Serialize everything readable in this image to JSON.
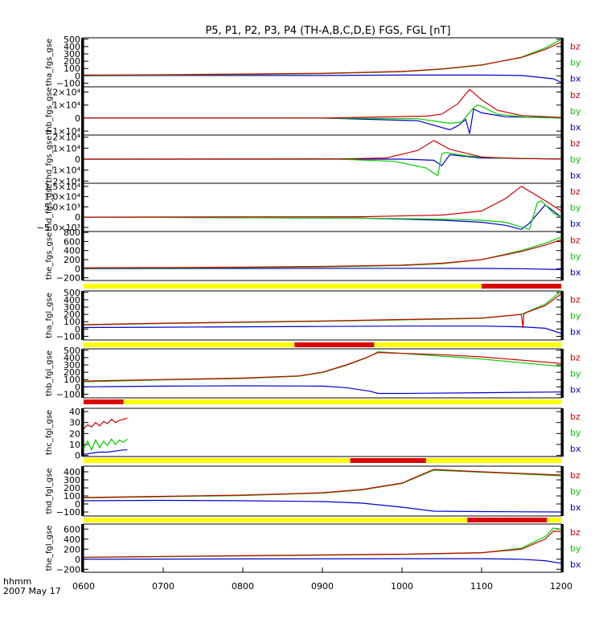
{
  "title": "P5, P1, P2, P3, P4 (TH-A,B,C,D,E) FGS, FGL [nT]",
  "time_axis": {
    "unit_label": "hhmm",
    "date_label": "2007 May 17",
    "ticks": [
      "0600",
      "0700",
      "0800",
      "0900",
      "1000",
      "1100",
      "1200"
    ],
    "range_hours": [
      6,
      12
    ]
  },
  "colors": {
    "bz": "#cc0000",
    "by": "#00cc00",
    "bx": "#0000cc",
    "bar_yellow": "#ffff00",
    "bar_red": "#dd0000",
    "axis": "#000000"
  },
  "chart_data": [
    {
      "type": "line",
      "ylabel": "tha_fgs_gse",
      "yticks": [
        {
          "v": -100,
          "t": "−100"
        },
        {
          "v": 0,
          "t": "0"
        },
        {
          "v": 100,
          "t": "100"
        },
        {
          "v": 200,
          "t": "200"
        },
        {
          "v": 300,
          "t": "300"
        },
        {
          "v": 400,
          "t": "400"
        },
        {
          "v": 500,
          "t": "500"
        }
      ],
      "ylim": [
        -150,
        520
      ],
      "series": [
        {
          "name": "bz",
          "x": [
            6.0,
            7.0,
            8.0,
            9.0,
            10.0,
            10.5,
            11.0,
            11.5,
            11.8,
            12.0
          ],
          "values": [
            10,
            15,
            25,
            35,
            60,
            95,
            150,
            250,
            360,
            460
          ]
        },
        {
          "name": "by",
          "x": [
            6.0,
            7.0,
            8.0,
            9.0,
            10.0,
            10.5,
            11.0,
            11.5,
            11.8,
            12.0
          ],
          "values": [
            5,
            10,
            18,
            30,
            55,
            90,
            145,
            255,
            380,
            500
          ]
        },
        {
          "name": "bx",
          "x": [
            6.0,
            7.0,
            8.0,
            9.0,
            10.0,
            11.0,
            11.5,
            11.9,
            12.0
          ],
          "values": [
            0,
            5,
            5,
            5,
            10,
            10,
            5,
            -40,
            -90
          ]
        }
      ]
    },
    {
      "type": "line",
      "ylabel": "thb_fgs_gse",
      "yticks": [
        {
          "v": -10000,
          "t": "−1×10⁴"
        },
        {
          "v": 0,
          "t": "0"
        },
        {
          "v": 10000,
          "t": "1×10⁴"
        },
        {
          "v": 20000,
          "t": "2×10⁴"
        }
      ],
      "ylim": [
        -13000,
        24000
      ],
      "series": [
        {
          "name": "bz",
          "x": [
            6.0,
            9.0,
            10.3,
            10.5,
            10.7,
            10.85,
            11.0,
            11.2,
            11.5,
            12.0
          ],
          "values": [
            0,
            50,
            1500,
            3000,
            11000,
            22000,
            14000,
            6000,
            2000,
            500
          ]
        },
        {
          "name": "by",
          "x": [
            6.0,
            9.0,
            10.2,
            10.6,
            10.75,
            10.9,
            10.95,
            11.0,
            11.2,
            11.6,
            12.0
          ],
          "values": [
            0,
            0,
            -500,
            -4000,
            -3000,
            8000,
            10000,
            9000,
            3000,
            500,
            100
          ]
        },
        {
          "name": "bx",
          "x": [
            6.0,
            9.0,
            10.2,
            10.6,
            10.7,
            10.8,
            10.85,
            10.9,
            11.0,
            11.3,
            12.0
          ],
          "values": [
            0,
            0,
            -2000,
            -9000,
            -6000,
            -1000,
            -12000,
            7000,
            4000,
            1000,
            200
          ]
        }
      ]
    },
    {
      "type": "line",
      "ylabel": "thc_fgs_gse",
      "yticks": [
        {
          "v": -20000,
          "t": "−2×10⁴"
        },
        {
          "v": -10000,
          "t": "−1×10⁴"
        },
        {
          "v": 0,
          "t": "0"
        },
        {
          "v": 10000,
          "t": "1×10⁴"
        },
        {
          "v": 20000,
          "t": "2×10⁴"
        }
      ],
      "ylim": [
        -22000,
        22000
      ],
      "series": [
        {
          "name": "bz",
          "x": [
            6.0,
            9.2,
            9.8,
            10.2,
            10.4,
            10.6,
            11.0,
            11.5,
            12.0
          ],
          "values": [
            0,
            200,
            1000,
            8000,
            17000,
            9000,
            2000,
            500,
            200
          ]
        },
        {
          "name": "by",
          "x": [
            6.0,
            9.2,
            9.9,
            10.3,
            10.45,
            10.5,
            10.55,
            10.8,
            11.2,
            12.0
          ],
          "values": [
            0,
            0,
            -2000,
            -8000,
            -15000,
            5000,
            6000,
            3000,
            1000,
            200
          ]
        },
        {
          "name": "bx",
          "x": [
            6.0,
            9.2,
            10.0,
            10.4,
            10.5,
            10.6,
            11.0,
            12.0
          ],
          "values": [
            0,
            0,
            0,
            -1000,
            -6000,
            4000,
            1000,
            100
          ]
        }
      ]
    },
    {
      "type": "line",
      "ylabel": "thd_fgs_gse",
      "yticks": [
        {
          "v": -5000,
          "t": "−5.0×10³"
        },
        {
          "v": 0,
          "t": "0"
        },
        {
          "v": 5000,
          "t": "5.0×10³"
        },
        {
          "v": 10000,
          "t": "1.0×10⁴"
        },
        {
          "v": 15000,
          "t": "1.5×10⁴"
        }
      ],
      "ylim": [
        -7000,
        16500
      ],
      "series": [
        {
          "name": "bz",
          "x": [
            6.0,
            9.5,
            10.5,
            11.0,
            11.3,
            11.5,
            11.8,
            12.0
          ],
          "values": [
            0,
            200,
            1000,
            3000,
            9000,
            15000,
            8000,
            3000
          ]
        },
        {
          "name": "by",
          "x": [
            6.0,
            9.5,
            10.5,
            11.0,
            11.3,
            11.6,
            11.7,
            11.75,
            11.9,
            12.0
          ],
          "values": [
            0,
            -500,
            -1000,
            -1500,
            -2500,
            -6000,
            7000,
            8000,
            2000,
            0
          ]
        },
        {
          "name": "bx",
          "x": [
            6.0,
            9.5,
            10.5,
            11.0,
            11.3,
            11.5,
            11.6,
            11.8,
            12.0
          ],
          "values": [
            0,
            -500,
            -1500,
            -2500,
            -4000,
            -6000,
            -3000,
            6000,
            0
          ]
        }
      ]
    },
    {
      "type": "line",
      "ylabel": "the_fgs_gse",
      "yticks": [
        {
          "v": -200,
          "t": "−200"
        },
        {
          "v": 0,
          "t": "0"
        },
        {
          "v": 200,
          "t": "200"
        },
        {
          "v": 400,
          "t": "400"
        },
        {
          "v": 600,
          "t": "600"
        },
        {
          "v": 800,
          "t": "800"
        }
      ],
      "ylim": [
        -260,
        820
      ],
      "bar": {
        "red_ranges_hours": [
          [
            11.0,
            12.0
          ]
        ]
      },
      "series": [
        {
          "name": "bz",
          "x": [
            6.0,
            7.0,
            8.0,
            9.0,
            10.0,
            10.5,
            11.0,
            11.5,
            11.8,
            12.0
          ],
          "values": [
            20,
            25,
            35,
            50,
            80,
            120,
            200,
            380,
            520,
            640
          ]
        },
        {
          "name": "by",
          "x": [
            6.0,
            7.0,
            8.0,
            9.0,
            10.0,
            10.5,
            11.0,
            11.5,
            11.8,
            12.0
          ],
          "values": [
            10,
            15,
            25,
            40,
            70,
            110,
            200,
            400,
            560,
            700
          ]
        },
        {
          "name": "bx",
          "x": [
            6.0,
            8.0,
            10.0,
            11.0,
            11.5,
            12.0
          ],
          "values": [
            0,
            5,
            10,
            5,
            0,
            -20
          ]
        }
      ]
    },
    {
      "type": "line",
      "ylabel": "tha_fgl_gse",
      "yticks": [
        {
          "v": -100,
          "t": "−100"
        },
        {
          "v": 0,
          "t": "0"
        },
        {
          "v": 100,
          "t": "100"
        },
        {
          "v": 200,
          "t": "200"
        },
        {
          "v": 300,
          "t": "300"
        },
        {
          "v": 400,
          "t": "400"
        },
        {
          "v": 500,
          "t": "500"
        }
      ],
      "ylim": [
        -150,
        520
      ],
      "bar": {
        "red_ranges_hours": [
          [
            8.65,
            9.65
          ]
        ]
      },
      "series": [
        {
          "name": "bz",
          "x": [
            6.0,
            7.0,
            8.0,
            9.0,
            10.0,
            11.0,
            11.5,
            11.52,
            11.53,
            11.55,
            11.8,
            12.0
          ],
          "values": [
            60,
            80,
            95,
            110,
            130,
            150,
            200,
            10,
            200,
            220,
            320,
            480
          ]
        },
        {
          "name": "by",
          "x": [
            6.0,
            7.0,
            8.0,
            9.0,
            10.0,
            11.0,
            11.5,
            11.8,
            12.0
          ],
          "values": [
            55,
            75,
            90,
            105,
            125,
            145,
            200,
            340,
            520
          ]
        },
        {
          "name": "bx",
          "x": [
            6.0,
            7.0,
            8.0,
            9.0,
            10.0,
            11.0,
            11.5,
            11.8,
            12.0
          ],
          "values": [
            20,
            25,
            30,
            35,
            40,
            40,
            30,
            10,
            -60
          ]
        }
      ]
    },
    {
      "type": "line",
      "ylabel": "thb_fgl_gse",
      "yticks": [
        {
          "v": -100,
          "t": "−100"
        },
        {
          "v": 0,
          "t": "0"
        },
        {
          "v": 100,
          "t": "100"
        },
        {
          "v": 200,
          "t": "200"
        },
        {
          "v": 300,
          "t": "300"
        },
        {
          "v": 400,
          "t": "400"
        },
        {
          "v": 500,
          "t": "500"
        }
      ],
      "ylim": [
        -150,
        520
      ],
      "bar": {
        "red_ranges_hours": [
          [
            6.0,
            6.5
          ]
        ]
      },
      "series": [
        {
          "name": "bz",
          "x": [
            6.0,
            7.0,
            8.0,
            8.7,
            9.0,
            9.3,
            9.55,
            9.7,
            10.5,
            11.0,
            12.0
          ],
          "values": [
            80,
            100,
            120,
            150,
            200,
            300,
            400,
            470,
            440,
            410,
            320
          ]
        },
        {
          "name": "by",
          "x": [
            6.0,
            7.0,
            8.0,
            8.7,
            9.0,
            9.3,
            9.55,
            9.7,
            10.5,
            11.0,
            12.0
          ],
          "values": [
            70,
            95,
            115,
            145,
            195,
            295,
            395,
            480,
            420,
            380,
            280
          ]
        },
        {
          "name": "bx",
          "x": [
            6.0,
            7.0,
            8.0,
            9.0,
            9.3,
            9.6,
            9.7,
            10.0,
            11.0,
            12.0
          ],
          "values": [
            0,
            10,
            15,
            10,
            -10,
            -60,
            -90,
            -90,
            -80,
            -70
          ]
        }
      ]
    },
    {
      "type": "line",
      "ylabel": "thc_fgl_gse",
      "yticks": [
        {
          "v": 0,
          "t": "0"
        },
        {
          "v": 10,
          "t": "10"
        },
        {
          "v": 20,
          "t": "20"
        },
        {
          "v": 30,
          "t": "30"
        },
        {
          "v": 40,
          "t": "40"
        }
      ],
      "ylim": [
        -1,
        43
      ],
      "bar": {
        "red_ranges_hours": [
          [
            9.35,
            10.3
          ]
        ]
      },
      "series": [
        {
          "name": "bz",
          "x": [
            6.0,
            6.05,
            6.1,
            6.15,
            6.2,
            6.25,
            6.3,
            6.35,
            6.4,
            6.45,
            6.5,
            6.55
          ],
          "values": [
            24,
            28,
            26,
            30,
            27,
            31,
            29,
            33,
            30,
            32,
            33,
            34
          ]
        },
        {
          "name": "by",
          "x": [
            6.0,
            6.05,
            6.1,
            6.15,
            6.2,
            6.25,
            6.3,
            6.35,
            6.4,
            6.45,
            6.5,
            6.55
          ],
          "values": [
            6,
            13,
            5,
            14,
            7,
            13,
            9,
            15,
            10,
            14,
            12,
            15
          ]
        },
        {
          "name": "bx",
          "x": [
            6.0,
            6.1,
            6.2,
            6.3,
            6.4,
            6.5,
            6.55
          ],
          "values": [
            1,
            2,
            3,
            3,
            4,
            5,
            5
          ]
        }
      ]
    },
    {
      "type": "line",
      "ylabel": "thd_fgl_gse",
      "yticks": [
        {
          "v": -100,
          "t": "−100"
        },
        {
          "v": 0,
          "t": "0"
        },
        {
          "v": 100,
          "t": "100"
        },
        {
          "v": 200,
          "t": "200"
        },
        {
          "v": 300,
          "t": "300"
        },
        {
          "v": 400,
          "t": "400"
        }
      ],
      "ylim": [
        -150,
        470
      ],
      "bar": {
        "red_ranges_hours": [
          [
            10.82,
            11.82
          ]
        ]
      },
      "series": [
        {
          "name": "bz",
          "x": [
            6.0,
            7.0,
            8.0,
            9.0,
            9.5,
            10.0,
            10.4,
            11.0,
            12.0
          ],
          "values": [
            80,
            95,
            110,
            140,
            180,
            260,
            430,
            400,
            360
          ]
        },
        {
          "name": "by",
          "x": [
            6.0,
            7.0,
            8.0,
            9.0,
            9.5,
            10.0,
            10.4,
            11.0,
            12.0
          ],
          "values": [
            75,
            90,
            105,
            135,
            175,
            255,
            420,
            395,
            350
          ]
        },
        {
          "name": "bx",
          "x": [
            6.0,
            7.0,
            8.0,
            9.0,
            9.5,
            10.0,
            10.4,
            11.0,
            12.0
          ],
          "values": [
            40,
            45,
            40,
            30,
            10,
            -40,
            -90,
            -95,
            -100
          ]
        }
      ]
    },
    {
      "type": "line",
      "ylabel": "the_fgl_gse",
      "yticks": [
        {
          "v": -200,
          "t": "−200"
        },
        {
          "v": 0,
          "t": "0"
        },
        {
          "v": 200,
          "t": "200"
        },
        {
          "v": 400,
          "t": "400"
        },
        {
          "v": 600,
          "t": "600"
        }
      ],
      "ylim": [
        -260,
        700
      ],
      "series": [
        {
          "name": "bz",
          "x": [
            6.0,
            7.0,
            8.0,
            9.0,
            10.0,
            11.0,
            11.5,
            11.8,
            11.9,
            12.0
          ],
          "values": [
            40,
            55,
            70,
            85,
            100,
            130,
            200,
            400,
            560,
            550
          ]
        },
        {
          "name": "by",
          "x": [
            6.0,
            7.0,
            8.0,
            9.0,
            10.0,
            11.0,
            11.5,
            11.8,
            11.9,
            12.0
          ],
          "values": [
            35,
            50,
            65,
            80,
            95,
            125,
            220,
            450,
            620,
            600
          ]
        },
        {
          "name": "bx",
          "x": [
            6.0,
            8.0,
            10.0,
            11.0,
            11.5,
            11.8,
            12.0
          ],
          "values": [
            0,
            5,
            10,
            10,
            0,
            -30,
            -80
          ]
        }
      ]
    }
  ]
}
